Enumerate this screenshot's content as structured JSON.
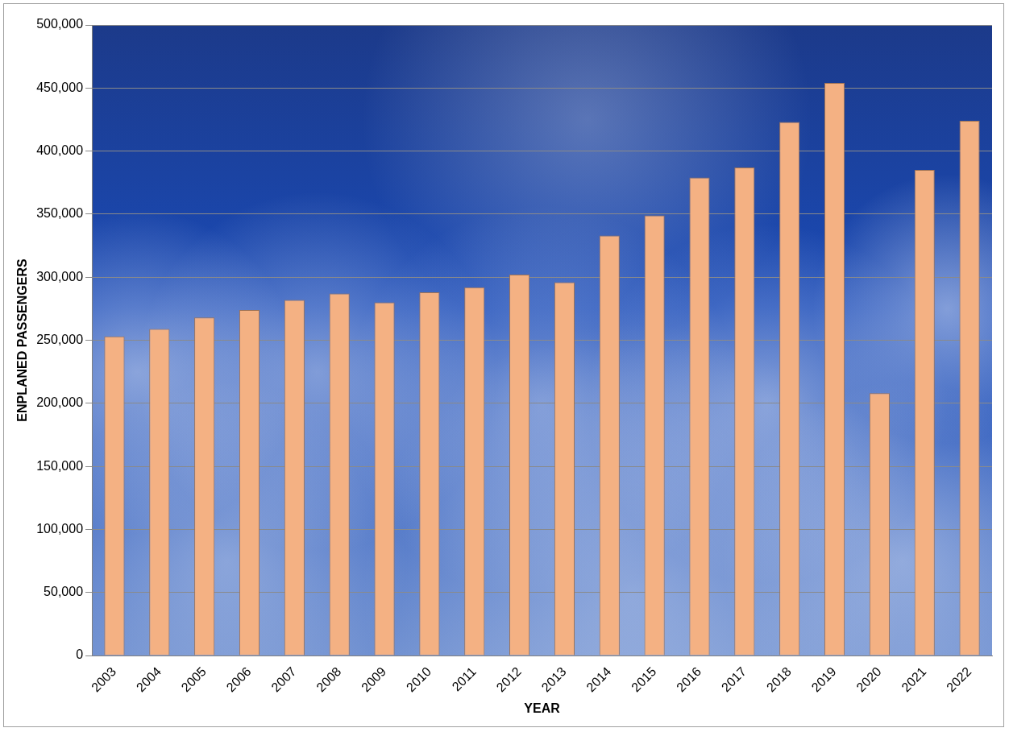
{
  "chart_data": {
    "type": "bar",
    "x_label": "YEAR",
    "y_label": "ENPLANED PASSENGERS",
    "categories": [
      "2003",
      "2004",
      "2005",
      "2006",
      "2007",
      "2008",
      "2009",
      "2010",
      "2011",
      "2012",
      "2013",
      "2014",
      "2015",
      "2016",
      "2017",
      "2018",
      "2019",
      "2020",
      "2021",
      "2022"
    ],
    "values": [
      253000,
      259000,
      268000,
      274000,
      282000,
      287000,
      280000,
      288000,
      292000,
      302000,
      296000,
      333000,
      349000,
      379000,
      387000,
      423000,
      454000,
      208000,
      385000,
      424000
    ],
    "color": "#f4b183",
    "ylim": [
      0,
      500000
    ],
    "yticks": [
      0,
      {
        "value": 50000,
        "label": "50,000"
      },
      {
        "value": 100000,
        "label": "100,000"
      },
      {
        "value": 150000,
        "label": "150,000"
      },
      {
        "value": 200000,
        "label": "200,000"
      },
      {
        "value": 250000,
        "label": "250,000"
      },
      {
        "value": 300000,
        "label": "300,000"
      },
      {
        "value": 350000,
        "label": "350,000"
      },
      {
        "value": 400000,
        "label": "400,000"
      },
      {
        "value": 450000,
        "label": "450,000"
      },
      {
        "value": 500000,
        "label": "500,000"
      }
    ],
    "grid": true
  }
}
